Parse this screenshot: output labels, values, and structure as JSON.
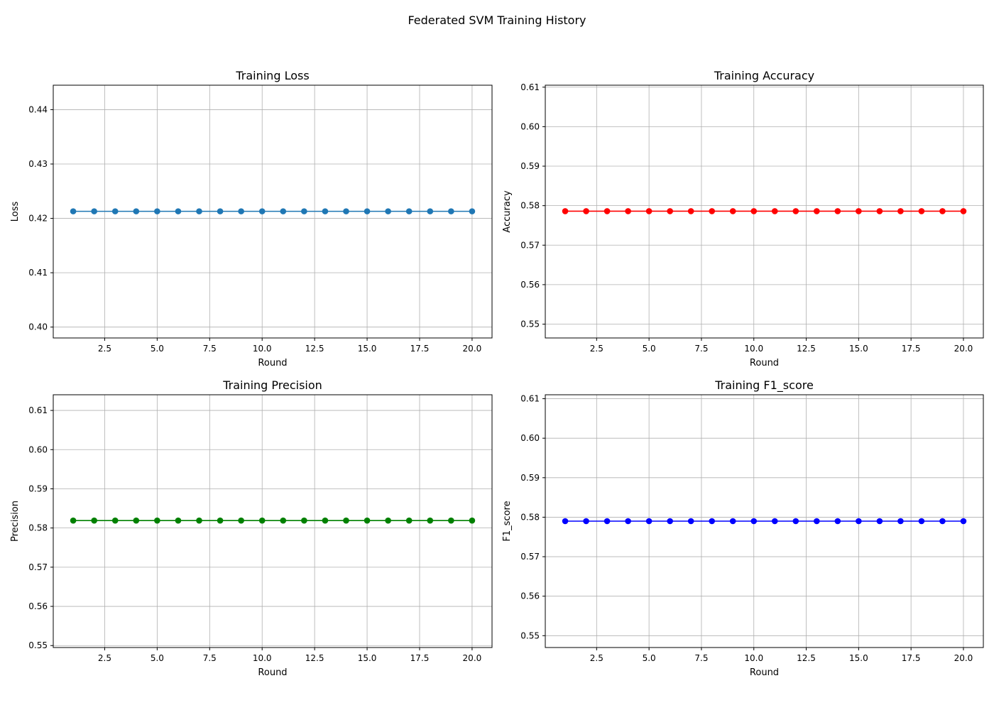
{
  "figure": {
    "title": "Federated SVM Training History"
  },
  "chart_data": [
    {
      "type": "line",
      "title": "Training Loss",
      "xlabel": "Round",
      "ylabel": "Loss",
      "xlim": [
        0.05,
        20.95
      ],
      "ylim": [
        0.398,
        0.4445
      ],
      "xticks": [
        2.5,
        5.0,
        7.5,
        10.0,
        12.5,
        15.0,
        17.5,
        20.0
      ],
      "xtick_labels": [
        "2.5",
        "5.0",
        "7.5",
        "10.0",
        "12.5",
        "15.0",
        "17.5",
        "20.0"
      ],
      "yticks": [
        0.4,
        0.41,
        0.42,
        0.43,
        0.44
      ],
      "ytick_labels": [
        "0.40",
        "0.41",
        "0.42",
        "0.43",
        "0.44"
      ],
      "grid": true,
      "x": [
        1,
        2,
        3,
        4,
        5,
        6,
        7,
        8,
        9,
        10,
        11,
        12,
        13,
        14,
        15,
        16,
        17,
        18,
        19,
        20
      ],
      "series": [
        {
          "values": [
            0.4213,
            0.4213,
            0.4213,
            0.4213,
            0.4213,
            0.4213,
            0.4213,
            0.4213,
            0.4213,
            0.4213,
            0.4213,
            0.4213,
            0.4213,
            0.4213,
            0.4213,
            0.4213,
            0.4213,
            0.4213,
            0.4213,
            0.4213
          ],
          "color": "#1f77b4",
          "marker": "circle"
        }
      ]
    },
    {
      "type": "line",
      "title": "Training Accuracy",
      "xlabel": "Round",
      "ylabel": "Accuracy",
      "xlim": [
        0.05,
        20.95
      ],
      "ylim": [
        0.5465,
        0.6105
      ],
      "xticks": [
        2.5,
        5.0,
        7.5,
        10.0,
        12.5,
        15.0,
        17.5,
        20.0
      ],
      "xtick_labels": [
        "2.5",
        "5.0",
        "7.5",
        "10.0",
        "12.5",
        "15.0",
        "17.5",
        "20.0"
      ],
      "yticks": [
        0.55,
        0.56,
        0.57,
        0.58,
        0.59,
        0.6,
        0.61
      ],
      "ytick_labels": [
        "0.55",
        "0.56",
        "0.57",
        "0.58",
        "0.59",
        "0.60",
        "0.61"
      ],
      "grid": true,
      "x": [
        1,
        2,
        3,
        4,
        5,
        6,
        7,
        8,
        9,
        10,
        11,
        12,
        13,
        14,
        15,
        16,
        17,
        18,
        19,
        20
      ],
      "series": [
        {
          "values": [
            0.5786,
            0.5786,
            0.5786,
            0.5786,
            0.5786,
            0.5786,
            0.5786,
            0.5786,
            0.5786,
            0.5786,
            0.5786,
            0.5786,
            0.5786,
            0.5786,
            0.5786,
            0.5786,
            0.5786,
            0.5786,
            0.5786,
            0.5786
          ],
          "color": "#ff0000",
          "marker": "circle"
        }
      ]
    },
    {
      "type": "line",
      "title": "Training Precision",
      "xlabel": "Round",
      "ylabel": "Precision",
      "xlim": [
        0.05,
        20.95
      ],
      "ylim": [
        0.5495,
        0.614
      ],
      "xticks": [
        2.5,
        5.0,
        7.5,
        10.0,
        12.5,
        15.0,
        17.5,
        20.0
      ],
      "xtick_labels": [
        "2.5",
        "5.0",
        "7.5",
        "10.0",
        "12.5",
        "15.0",
        "17.5",
        "20.0"
      ],
      "yticks": [
        0.55,
        0.56,
        0.57,
        0.58,
        0.59,
        0.6,
        0.61
      ],
      "ytick_labels": [
        "0.55",
        "0.56",
        "0.57",
        "0.58",
        "0.59",
        "0.60",
        "0.61"
      ],
      "grid": true,
      "x": [
        1,
        2,
        3,
        4,
        5,
        6,
        7,
        8,
        9,
        10,
        11,
        12,
        13,
        14,
        15,
        16,
        17,
        18,
        19,
        20
      ],
      "series": [
        {
          "values": [
            0.5819,
            0.5819,
            0.5819,
            0.5819,
            0.5819,
            0.5819,
            0.5819,
            0.5819,
            0.5819,
            0.5819,
            0.5819,
            0.5819,
            0.5819,
            0.5819,
            0.5819,
            0.5819,
            0.5819,
            0.5819,
            0.5819,
            0.5819
          ],
          "color": "#008000",
          "marker": "circle"
        }
      ]
    },
    {
      "type": "line",
      "title": "Training F1_score",
      "xlabel": "Round",
      "ylabel": "F1_score",
      "xlim": [
        0.05,
        20.95
      ],
      "ylim": [
        0.547,
        0.611
      ],
      "xticks": [
        2.5,
        5.0,
        7.5,
        10.0,
        12.5,
        15.0,
        17.5,
        20.0
      ],
      "xtick_labels": [
        "2.5",
        "5.0",
        "7.5",
        "10.0",
        "12.5",
        "15.0",
        "17.5",
        "20.0"
      ],
      "yticks": [
        0.55,
        0.56,
        0.57,
        0.58,
        0.59,
        0.6,
        0.61
      ],
      "ytick_labels": [
        "0.55",
        "0.56",
        "0.57",
        "0.58",
        "0.59",
        "0.60",
        "0.61"
      ],
      "grid": true,
      "x": [
        1,
        2,
        3,
        4,
        5,
        6,
        7,
        8,
        9,
        10,
        11,
        12,
        13,
        14,
        15,
        16,
        17,
        18,
        19,
        20
      ],
      "series": [
        {
          "values": [
            0.579,
            0.579,
            0.579,
            0.579,
            0.579,
            0.579,
            0.579,
            0.579,
            0.579,
            0.579,
            0.579,
            0.579,
            0.579,
            0.579,
            0.579,
            0.579,
            0.579,
            0.579,
            0.579,
            0.579
          ],
          "color": "#0000ff",
          "marker": "circle"
        }
      ]
    }
  ]
}
